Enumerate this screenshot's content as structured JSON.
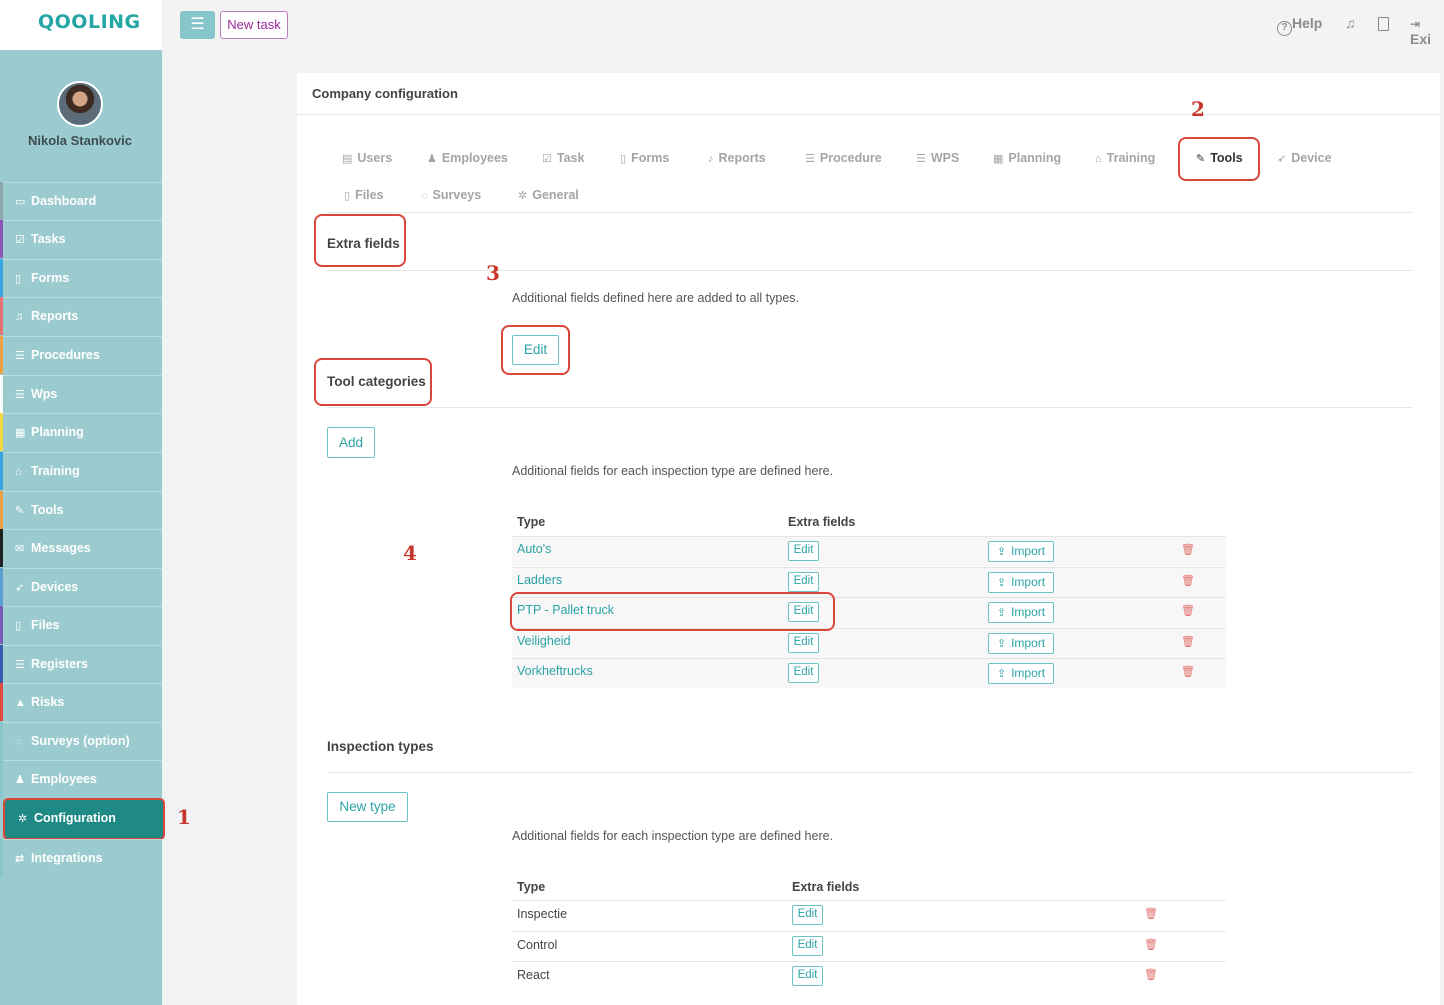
{
  "app": {
    "logo": "QOOLING"
  },
  "topbar": {
    "menu_icon": "menu-icon",
    "new_task": "New task",
    "help": "Help",
    "exit": "Exi"
  },
  "user": {
    "name": "Nikola Stankovic"
  },
  "sidebar": {
    "items": [
      {
        "label": "Dashboard",
        "icon": "monitor-icon",
        "icon_glyph": "▭",
        "bar": "#8fa8ad"
      },
      {
        "label": "Tasks",
        "icon": "check-icon",
        "icon_glyph": "☑",
        "bar": "#8a58b8"
      },
      {
        "label": "Forms",
        "icon": "file-icon",
        "icon_glyph": "▯",
        "bar": "#3aa5e0"
      },
      {
        "label": "Reports",
        "icon": "bell-icon",
        "icon_glyph": "♫",
        "bar": "#e57373"
      },
      {
        "label": "Procedures",
        "icon": "list-icon",
        "icon_glyph": "☰",
        "bar": "#f0a040"
      },
      {
        "label": "Wps",
        "icon": "list-icon",
        "icon_glyph": "☰",
        "bar": "#ffffff"
      },
      {
        "label": "Planning",
        "icon": "calendar-icon",
        "icon_glyph": "▦",
        "bar": "#f5d742"
      },
      {
        "label": "Training",
        "icon": "graduation-icon",
        "icon_glyph": "⌂",
        "bar": "#3aa5e0"
      },
      {
        "label": "Tools",
        "icon": "wrench-icon",
        "icon_glyph": "✎",
        "bar": "#f0a040"
      },
      {
        "label": "Messages",
        "icon": "envelope-icon",
        "icon_glyph": "✉",
        "bar": "#222222"
      },
      {
        "label": "Devices",
        "icon": "rocket-icon",
        "icon_glyph": "➶",
        "bar": "#5aa0d0"
      },
      {
        "label": "Files",
        "icon": "file-icon",
        "icon_glyph": "▯",
        "bar": "#7a5ab8"
      },
      {
        "label": "Registers",
        "icon": "list-icon",
        "icon_glyph": "☰",
        "bar": "#3a5ab0"
      },
      {
        "label": "Risks",
        "icon": "warning-icon",
        "icon_glyph": "▲",
        "bar": "#e04a3a"
      },
      {
        "label": "Surveys (option)",
        "icon": "comment-icon",
        "icon_glyph": "◌",
        "bar": "#86c5c9"
      },
      {
        "label": "Employees",
        "icon": "users-icon",
        "icon_glyph": "♟",
        "bar": "#86c5c9"
      },
      {
        "label": "Configuration",
        "icon": "gear-icon",
        "icon_glyph": "✲",
        "bar": "#1f8a85",
        "active": true
      },
      {
        "label": "Integrations",
        "icon": "exchange-icon",
        "icon_glyph": "⇄",
        "bar": "#86c5c9"
      }
    ]
  },
  "panel": {
    "title": "Company configuration"
  },
  "tabs": [
    {
      "label": "Users",
      "icon": "id-card-icon",
      "glyph": "▤"
    },
    {
      "label": "Employees",
      "icon": "users-icon",
      "glyph": "♟"
    },
    {
      "label": "Task",
      "icon": "check-icon",
      "glyph": "☑"
    },
    {
      "label": "Forms",
      "icon": "file-icon",
      "glyph": "▯"
    },
    {
      "label": "Reports",
      "icon": "bell-icon",
      "glyph": "♪"
    },
    {
      "label": "Procedure",
      "icon": "list-icon",
      "glyph": "☰"
    },
    {
      "label": "WPS",
      "icon": "list-icon",
      "glyph": "☰"
    },
    {
      "label": "Planning",
      "icon": "calendar-icon",
      "glyph": "▦"
    },
    {
      "label": "Training",
      "icon": "graduation-icon",
      "glyph": "⌂"
    },
    {
      "label": "Tools",
      "icon": "wrench-icon",
      "glyph": "✎",
      "active": true
    },
    {
      "label": "Device",
      "icon": "rocket-icon",
      "glyph": "➶"
    },
    {
      "label": "Files",
      "icon": "file-icon",
      "glyph": "▯"
    },
    {
      "label": "Surveys",
      "icon": "comment-icon",
      "glyph": "◌"
    },
    {
      "label": "General",
      "icon": "gear-icon",
      "glyph": "✲"
    }
  ],
  "extra_fields": {
    "title": "Extra fields",
    "description": "Additional fields defined here are added to all types.",
    "edit": "Edit"
  },
  "tool_categories": {
    "title": "Tool categories",
    "add": "Add",
    "description": "Additional fields for each inspection type are defined here.",
    "col_type": "Type",
    "col_extra": "Extra fields",
    "rows": [
      {
        "type": "Auto's",
        "edit": "Edit",
        "import": "Import"
      },
      {
        "type": "Ladders",
        "edit": "Edit",
        "import": "Import"
      },
      {
        "type": "PTP - Pallet truck",
        "edit": "Edit",
        "import": "Import"
      },
      {
        "type": "Veiligheid",
        "edit": "Edit",
        "import": "Import"
      },
      {
        "type": "Vorkheftrucks",
        "edit": "Edit",
        "import": "Import"
      }
    ]
  },
  "inspection_types": {
    "title": "Inspection types",
    "new_type": "New type",
    "description": "Additional fields for each inspection type are defined here.",
    "col_type": "Type",
    "col_extra": "Extra fields",
    "rows": [
      {
        "type": "Inspectie",
        "edit": "Edit"
      },
      {
        "type": "Control",
        "edit": "Edit"
      },
      {
        "type": "React",
        "edit": "Edit"
      }
    ]
  },
  "annotations": [
    "1",
    "2",
    "3",
    "4"
  ],
  "colors": {
    "accent": "#2ba3a6",
    "sidebar": "#9bcbcf",
    "active_nav": "#1f8a85",
    "highlight": "#d9473a"
  }
}
